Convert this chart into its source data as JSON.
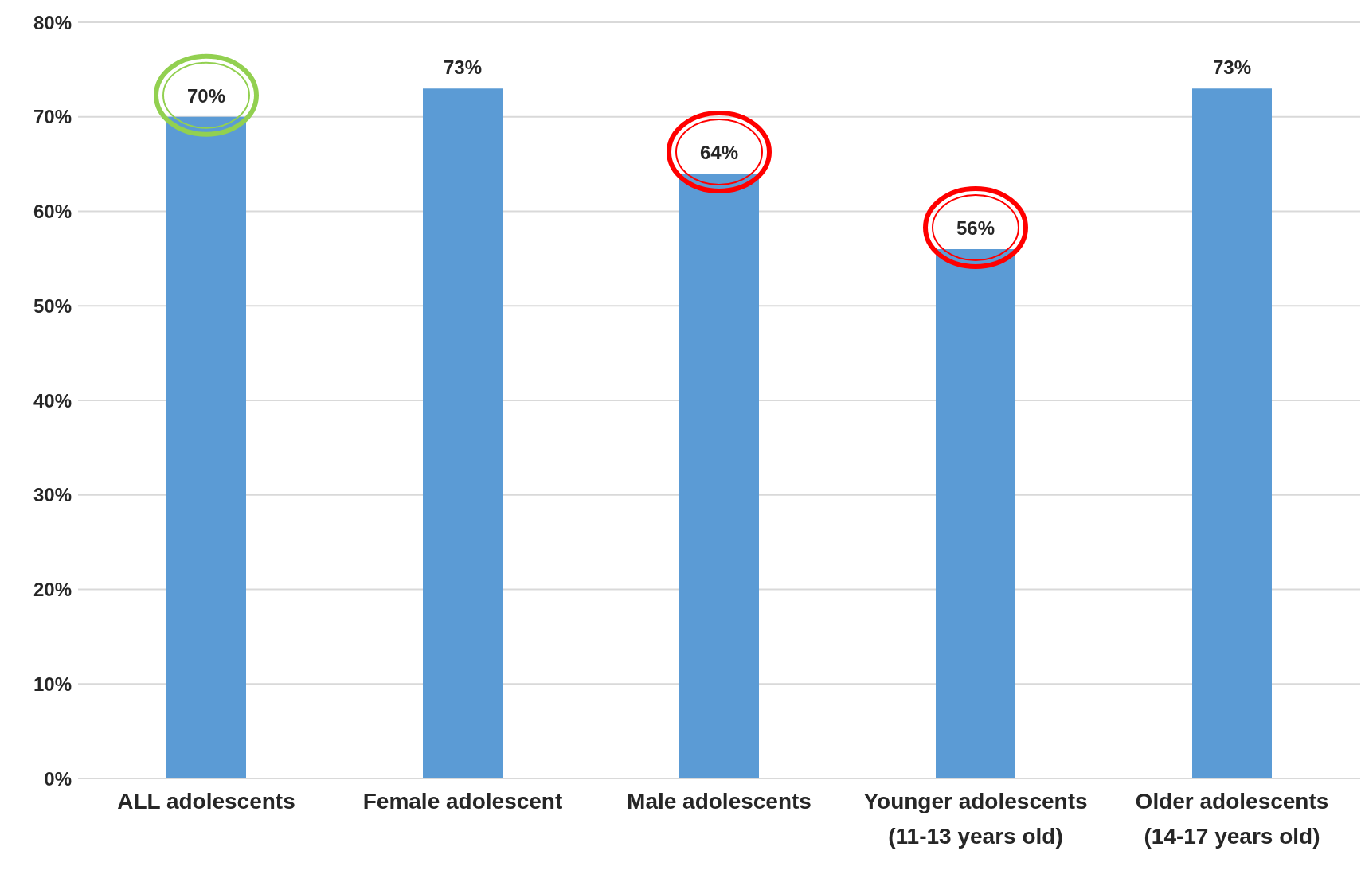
{
  "chart_data": {
    "type": "bar",
    "categories": [
      "ALL adolescents",
      "Female adolescent",
      "Male adolescents",
      "Younger adolescents\n(11-13 years old)",
      "Older adolescents\n(14-17 years old)"
    ],
    "values": [
      70,
      73,
      64,
      56,
      73
    ],
    "color": "#5b9bd5",
    "value_labels": [
      "70%",
      "73%",
      "64%",
      "56%",
      "73%"
    ],
    "ylim": [
      0,
      80
    ],
    "yticks": [
      {
        "value": 0,
        "label": "0%"
      },
      {
        "value": 10,
        "label": "10%"
      },
      {
        "value": 20,
        "label": "20%"
      },
      {
        "value": 30,
        "label": "30%"
      },
      {
        "value": 40,
        "label": "40%"
      },
      {
        "value": 50,
        "label": "50%"
      },
      {
        "value": 60,
        "label": "60%"
      },
      {
        "value": 70,
        "label": "70%"
      },
      {
        "value": 80,
        "label": "80%"
      }
    ],
    "grid": "y"
  }
}
